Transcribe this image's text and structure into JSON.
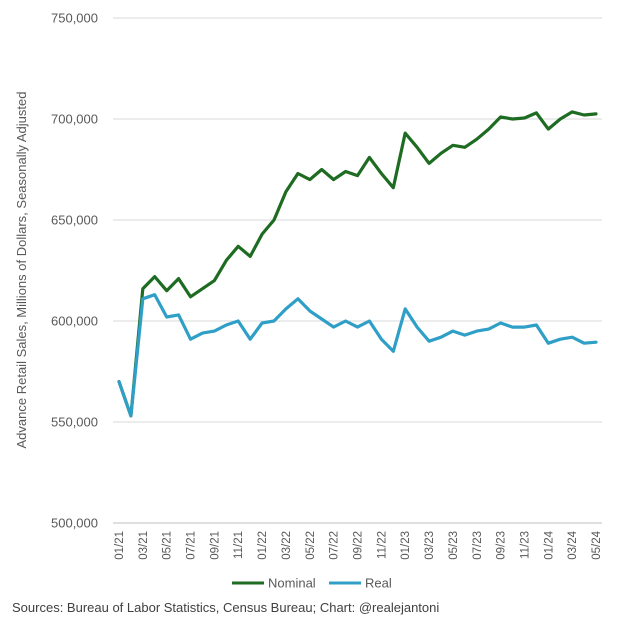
{
  "chart_data": {
    "type": "line",
    "ylabel": "Advance Retail Sales, Millions of Dollars, Seasonally Adjusted",
    "ylim": [
      500000,
      750000
    ],
    "yticks": [
      "500,000",
      "550,000",
      "600,000",
      "650,000",
      "700,000",
      "750,000"
    ],
    "ytick_values": [
      500000,
      550000,
      600000,
      650000,
      700000,
      750000
    ],
    "xtick_labels": [
      "01/21",
      "03/21",
      "05/21",
      "07/21",
      "09/21",
      "11/21",
      "01/22",
      "03/22",
      "05/22",
      "07/22",
      "09/22",
      "11/22",
      "01/23",
      "03/23",
      "05/23",
      "07/23",
      "09/23",
      "11/23",
      "01/24",
      "03/24",
      "05/24"
    ],
    "grid": true,
    "legend_position": "bottom",
    "x": [
      "01/21",
      "02/21",
      "03/21",
      "04/21",
      "05/21",
      "06/21",
      "07/21",
      "08/21",
      "09/21",
      "10/21",
      "11/21",
      "12/21",
      "01/22",
      "02/22",
      "03/22",
      "04/22",
      "05/22",
      "06/22",
      "07/22",
      "08/22",
      "09/22",
      "10/22",
      "11/22",
      "12/22",
      "01/23",
      "02/23",
      "03/23",
      "04/23",
      "05/23",
      "06/23",
      "07/23",
      "08/23",
      "09/23",
      "10/23",
      "11/23",
      "12/23",
      "01/24",
      "02/24",
      "03/24",
      "04/24",
      "05/24"
    ],
    "series": [
      {
        "name": "Nominal",
        "color": "#1e6b22",
        "values": [
          570000,
          553000,
          616000,
          622000,
          615000,
          621000,
          612000,
          616000,
          620000,
          630000,
          637000,
          632000,
          643000,
          650000,
          664000,
          673000,
          670000,
          675000,
          670000,
          674000,
          672000,
          681000,
          673000,
          666000,
          693000,
          686000,
          678000,
          683000,
          687000,
          686000,
          690000,
          695000,
          701000,
          700000,
          700500,
          703000,
          695000,
          700000,
          703500,
          702000,
          702500
        ]
      },
      {
        "name": "Real",
        "color": "#2f9fc7",
        "values": [
          570000,
          553000,
          611000,
          613000,
          602000,
          603000,
          591000,
          594000,
          595000,
          598000,
          600000,
          591000,
          599000,
          600000,
          606000,
          611000,
          605000,
          601000,
          597000,
          600000,
          597000,
          600000,
          591000,
          585000,
          606000,
          597000,
          590000,
          592000,
          595000,
          593000,
          595000,
          596000,
          599000,
          597000,
          597000,
          598000,
          589000,
          591000,
          592000,
          589000,
          589500
        ]
      }
    ]
  },
  "source_text": "Sources: Bureau of Labor Statistics, Census Bureau; Chart: @realejantoni"
}
